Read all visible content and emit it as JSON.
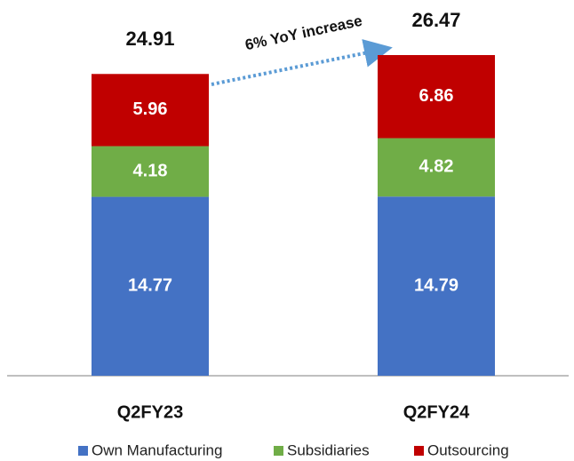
{
  "chart_data": {
    "type": "stacked_bar",
    "categories": [
      "Q2FY23",
      "Q2FY24"
    ],
    "series": [
      {
        "name": "Own Manufacturing",
        "color": "#4472c4",
        "values": [
          14.77,
          14.79
        ]
      },
      {
        "name": "Subsidiaries",
        "color": "#70ad47",
        "values": [
          4.18,
          4.82
        ]
      },
      {
        "name": "Outsourcing",
        "color": "#c00000",
        "values": [
          5.96,
          6.86
        ]
      }
    ],
    "totals": [
      24.91,
      26.47
    ],
    "annotation": "6% YoY increase"
  }
}
